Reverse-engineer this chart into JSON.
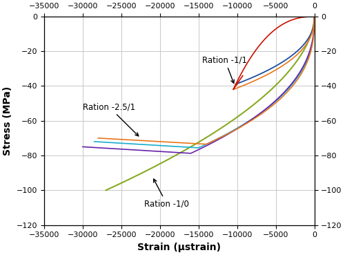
{
  "xlim": [
    -35000,
    0
  ],
  "ylim": [
    -120,
    0
  ],
  "xticks": [
    -35000,
    -30000,
    -25000,
    -20000,
    -15000,
    -10000,
    -5000,
    0
  ],
  "yticks": [
    0,
    -20,
    -40,
    -60,
    -80,
    -100,
    -120
  ],
  "xlabel": "Strain (μstrain)",
  "ylabel": "Stress (MPa)",
  "background_color": "#ffffff",
  "grid_color": "#c8c8c8",
  "annotation_ratio_11": "Ration -1/1",
  "annotation_ratio_251": "Ration -2.5/1",
  "annotation_ratio_10": "Ration -1/0",
  "color_orange": "#E8761A",
  "color_red": "#CC1100",
  "color_blue": "#1A4FA0",
  "color_cyan": "#1AACCC",
  "color_purple": "#6622AA",
  "color_green": "#88AA22",
  "tick_fontsize": 8,
  "label_fontsize": 10
}
